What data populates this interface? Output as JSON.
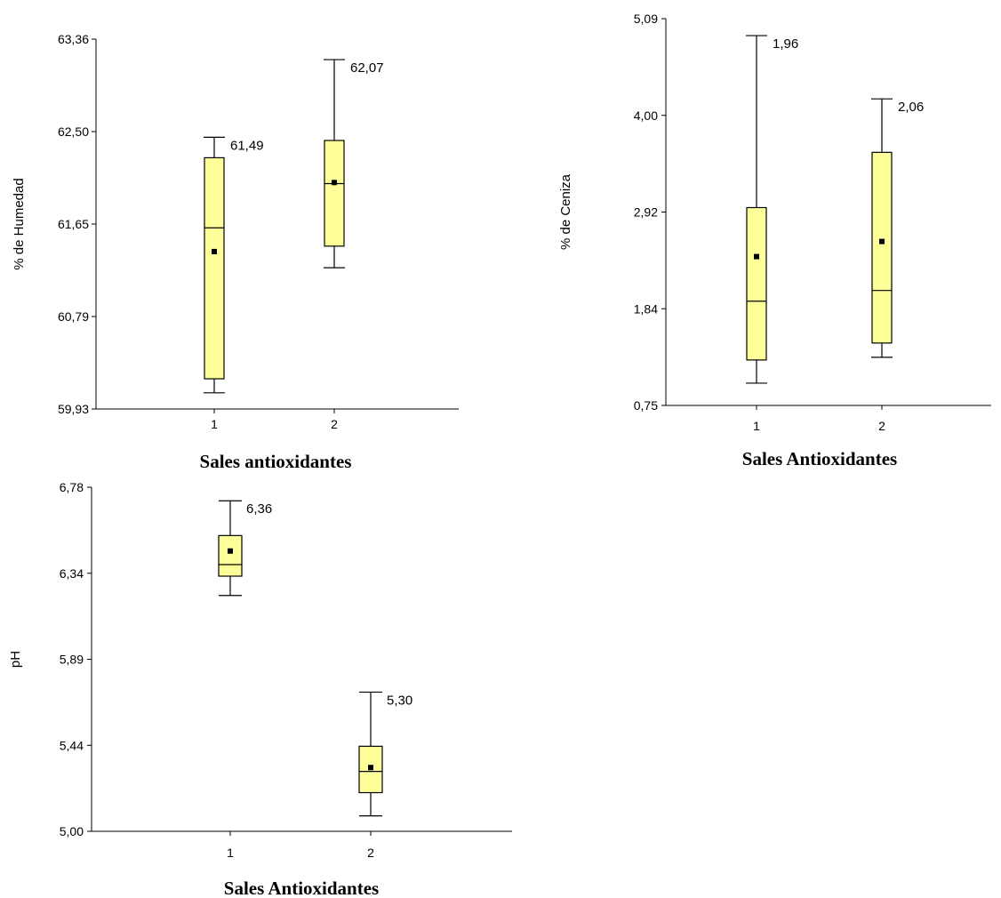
{
  "chart_data": [
    {
      "type": "boxplot",
      "xlabel": "Sales antioxidantes",
      "ylabel": "% de Humedad",
      "ylim": [
        59.93,
        63.36
      ],
      "yticks": [
        "59,93",
        "60,79",
        "61,65",
        "62,50",
        "63,36"
      ],
      "categories": [
        "1",
        "2"
      ],
      "boxes": [
        {
          "category": "1",
          "whisker_low": 60.08,
          "q1": 60.21,
          "median": 61.61,
          "q3": 62.26,
          "whisker_high": 62.45,
          "mean": 61.39,
          "label": "61,49"
        },
        {
          "category": "2",
          "whisker_low": 61.24,
          "q1": 61.44,
          "median": 62.02,
          "q3": 62.42,
          "whisker_high": 63.17,
          "mean": 62.03,
          "label": "62,07"
        }
      ]
    },
    {
      "type": "boxplot",
      "xlabel": "Sales Antioxidantes",
      "ylabel": "% de Ceniza",
      "ylim": [
        0.75,
        5.09
      ],
      "yticks": [
        "0,75",
        "1,84",
        "2,92",
        "4,00",
        "5,09"
      ],
      "categories": [
        "1",
        "2"
      ],
      "boxes": [
        {
          "category": "1",
          "whisker_low": 1.0,
          "q1": 1.26,
          "median": 1.92,
          "q3": 2.97,
          "whisker_high": 4.9,
          "mean": 2.42,
          "label": "1,96"
        },
        {
          "category": "2",
          "whisker_low": 1.29,
          "q1": 1.45,
          "median": 2.04,
          "q3": 3.59,
          "whisker_high": 4.19,
          "mean": 2.59,
          "label": "2,06"
        }
      ]
    },
    {
      "type": "boxplot",
      "xlabel": "Sales Antioxidantes",
      "ylabel": "pH",
      "ylim": [
        5.0,
        6.78
      ],
      "yticks": [
        "5,00",
        "5,44",
        "5,89",
        "6,34",
        "6,78"
      ],
      "categories": [
        "1",
        "2"
      ],
      "boxes": [
        {
          "category": "1",
          "whisker_low": 6.22,
          "q1": 6.32,
          "median": 6.38,
          "q3": 6.53,
          "whisker_high": 6.71,
          "mean": 6.45,
          "label": "6,36"
        },
        {
          "category": "2",
          "whisker_low": 5.08,
          "q1": 5.2,
          "median": 5.31,
          "q3": 5.44,
          "whisker_high": 5.72,
          "mean": 5.33,
          "label": "5,30"
        }
      ]
    }
  ],
  "colors": {
    "box_fill": "#ffff99",
    "stroke": "#000000",
    "background": "#ffffff"
  }
}
